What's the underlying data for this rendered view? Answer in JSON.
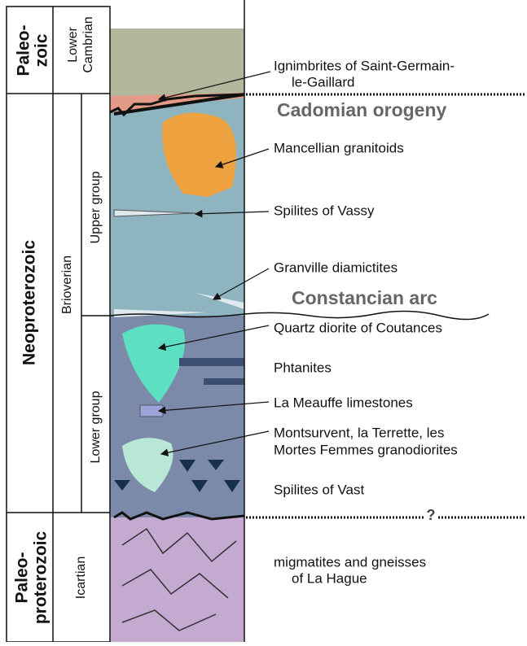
{
  "eras": [
    {
      "lines": [
        "Paleo-",
        "zoic"
      ]
    },
    {
      "lines": [
        "Neoproterozoic"
      ]
    },
    {
      "lines": [
        "Paleo-",
        "proterozoic"
      ]
    }
  ],
  "formations": [
    {
      "lines": [
        "Lower",
        "Cambrian"
      ]
    },
    {
      "lines": [
        "Brioverian"
      ]
    },
    {
      "lines": [
        "Icartian"
      ]
    }
  ],
  "groups": [
    "Upper group",
    "Lower group"
  ],
  "events": [
    "Cadomian orogeny",
    "Constancian arc"
  ],
  "labels": [
    {
      "lines": [
        "Ignimbrites of Saint-Germain-",
        "le-Gaillard"
      ]
    },
    {
      "lines": [
        "Mancellian granitoids"
      ]
    },
    {
      "lines": [
        "Spilites of Vassy"
      ]
    },
    {
      "lines": [
        "Granville diamictites"
      ]
    },
    {
      "lines": [
        "Quartz diorite of Coutances"
      ]
    },
    {
      "lines": [
        "Phtanites"
      ]
    },
    {
      "lines": [
        "La Meauffe limestones"
      ]
    },
    {
      "lines": [
        "Montsurvent, la Terrette, les",
        "Mortes Femmes granodiorites"
      ]
    },
    {
      "lines": [
        "Spilites of Vast"
      ]
    },
    {
      "lines": [
        "migmatites and gneisses",
        "of La Hague"
      ]
    }
  ],
  "unknown_mark": "?"
}
